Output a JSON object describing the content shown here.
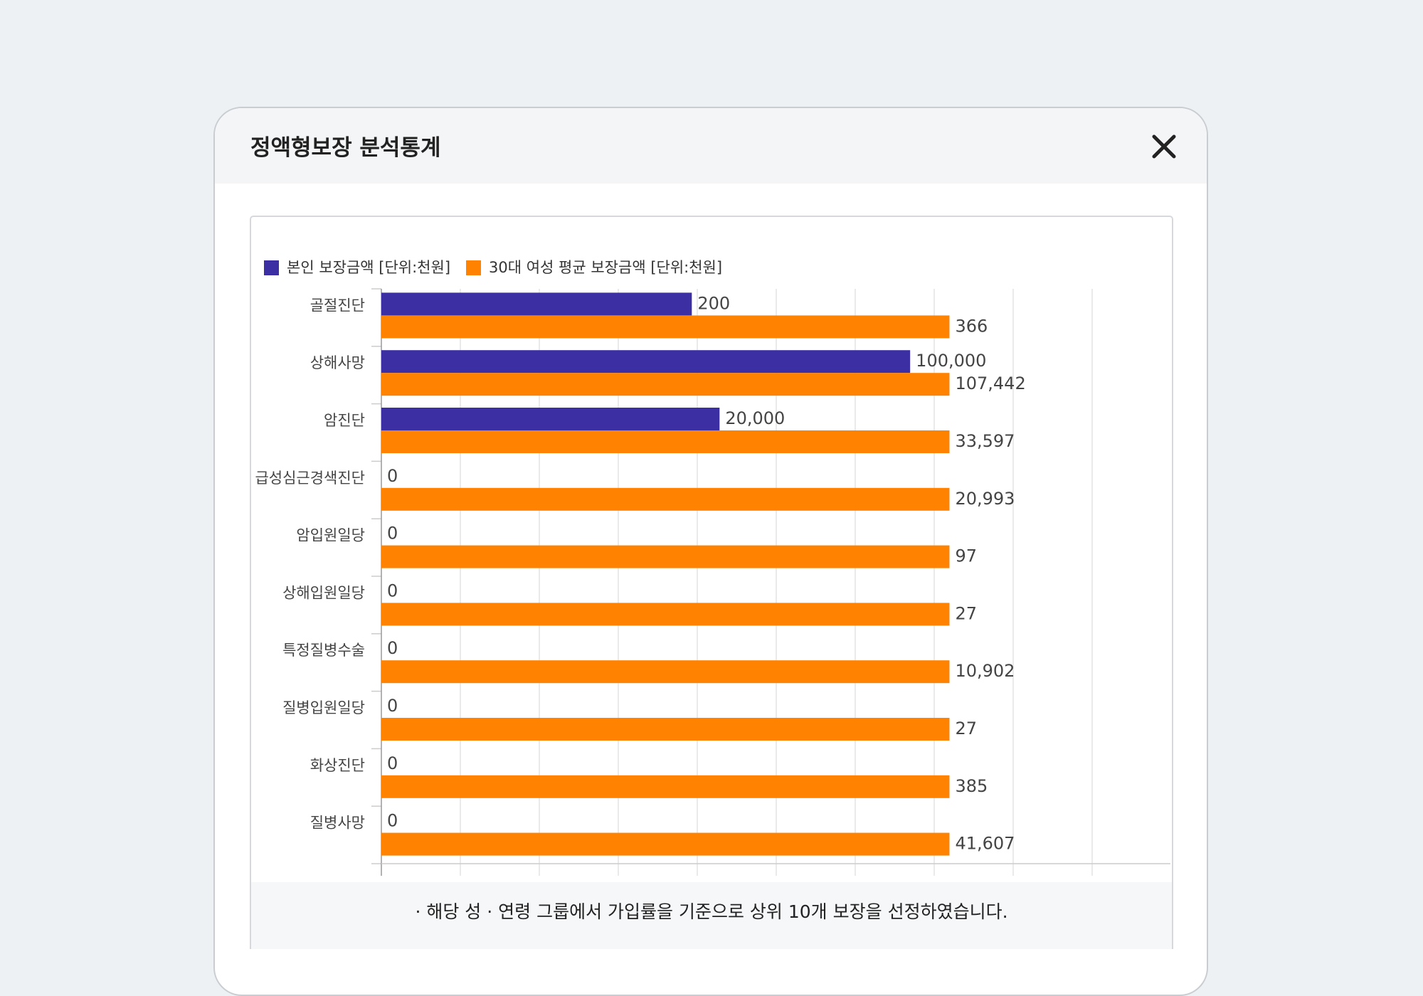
{
  "header": {
    "title": "정액형보장 분석통계"
  },
  "chart_data": {
    "type": "bar",
    "orientation": "horizontal",
    "categories": [
      "골절진단",
      "상해사망",
      "암진단",
      "급성심근경색진단",
      "암입원일당",
      "상해입원일당",
      "특정질병수술",
      "질병입원일당",
      "화상진단",
      "질병사망"
    ],
    "series": [
      {
        "name": "본인 보장금액 [단위:천원]",
        "color": "#3b2fa3",
        "values": [
          200,
          100000,
          20000,
          0,
          0,
          0,
          0,
          0,
          0,
          0
        ],
        "value_labels": [
          "200",
          "100,000",
          "20,000",
          "0",
          "0",
          "0",
          "0",
          "0",
          "0",
          "0"
        ]
      },
      {
        "name": "30대 여성 평균 보장금액 [단위:천원]",
        "color": "#ff8200",
        "values": [
          366,
          107442,
          33597,
          20993,
          97,
          27,
          10902,
          27,
          385,
          41607
        ],
        "value_labels": [
          "366",
          "107,442",
          "33,597",
          "20,993",
          "97",
          "27",
          "10,902",
          "27",
          "385",
          "41,607"
        ]
      }
    ],
    "grid": true
  },
  "footnote": "· 해당 성 · 연령 그룹에서 가입률을 기준으로 상위 10개 보장을 선정하였습니다."
}
